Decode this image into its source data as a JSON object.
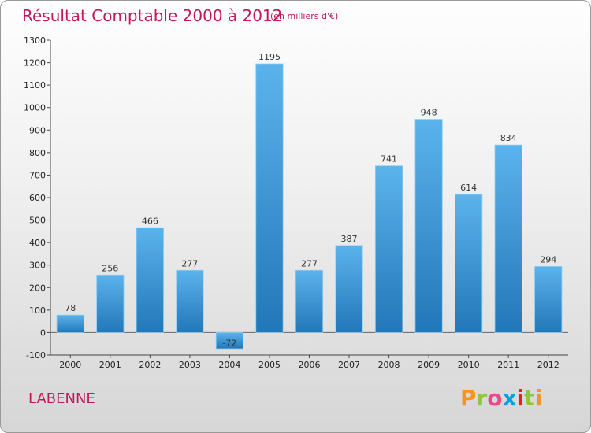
{
  "header": {
    "title": "Résultat Comptable 2000 à 2012",
    "subtitle": "(en milliers d'€)"
  },
  "footer": {
    "commune": "LABENNE",
    "logo_text": "Proxiti",
    "logo_colors": [
      "#f7941d",
      "#8dc63f",
      "#e84c88",
      "#00a0e3",
      "#ed1c24",
      "#8dc63f",
      "#f7941d"
    ]
  },
  "colors": {
    "bar_top": "#5bb3ec",
    "bar_bottom": "#2277b8",
    "accent": "#c2185b"
  },
  "chart_data": {
    "type": "bar",
    "title": "Résultat Comptable 2000 à 2012",
    "subtitle": "(en milliers d'€)",
    "xlabel": "",
    "ylabel": "",
    "categories": [
      "2000",
      "2001",
      "2002",
      "2003",
      "2004",
      "2005",
      "2006",
      "2007",
      "2008",
      "2009",
      "2010",
      "2011",
      "2012"
    ],
    "values": [
      78,
      256,
      466,
      277,
      -72,
      1195,
      277,
      387,
      741,
      948,
      614,
      834,
      294
    ],
    "ylim": [
      -100,
      1300
    ],
    "yticks": [
      -100,
      0,
      100,
      200,
      300,
      400,
      500,
      600,
      700,
      800,
      900,
      1000,
      1100,
      1200,
      1300
    ],
    "grid": false,
    "legend": "none"
  }
}
